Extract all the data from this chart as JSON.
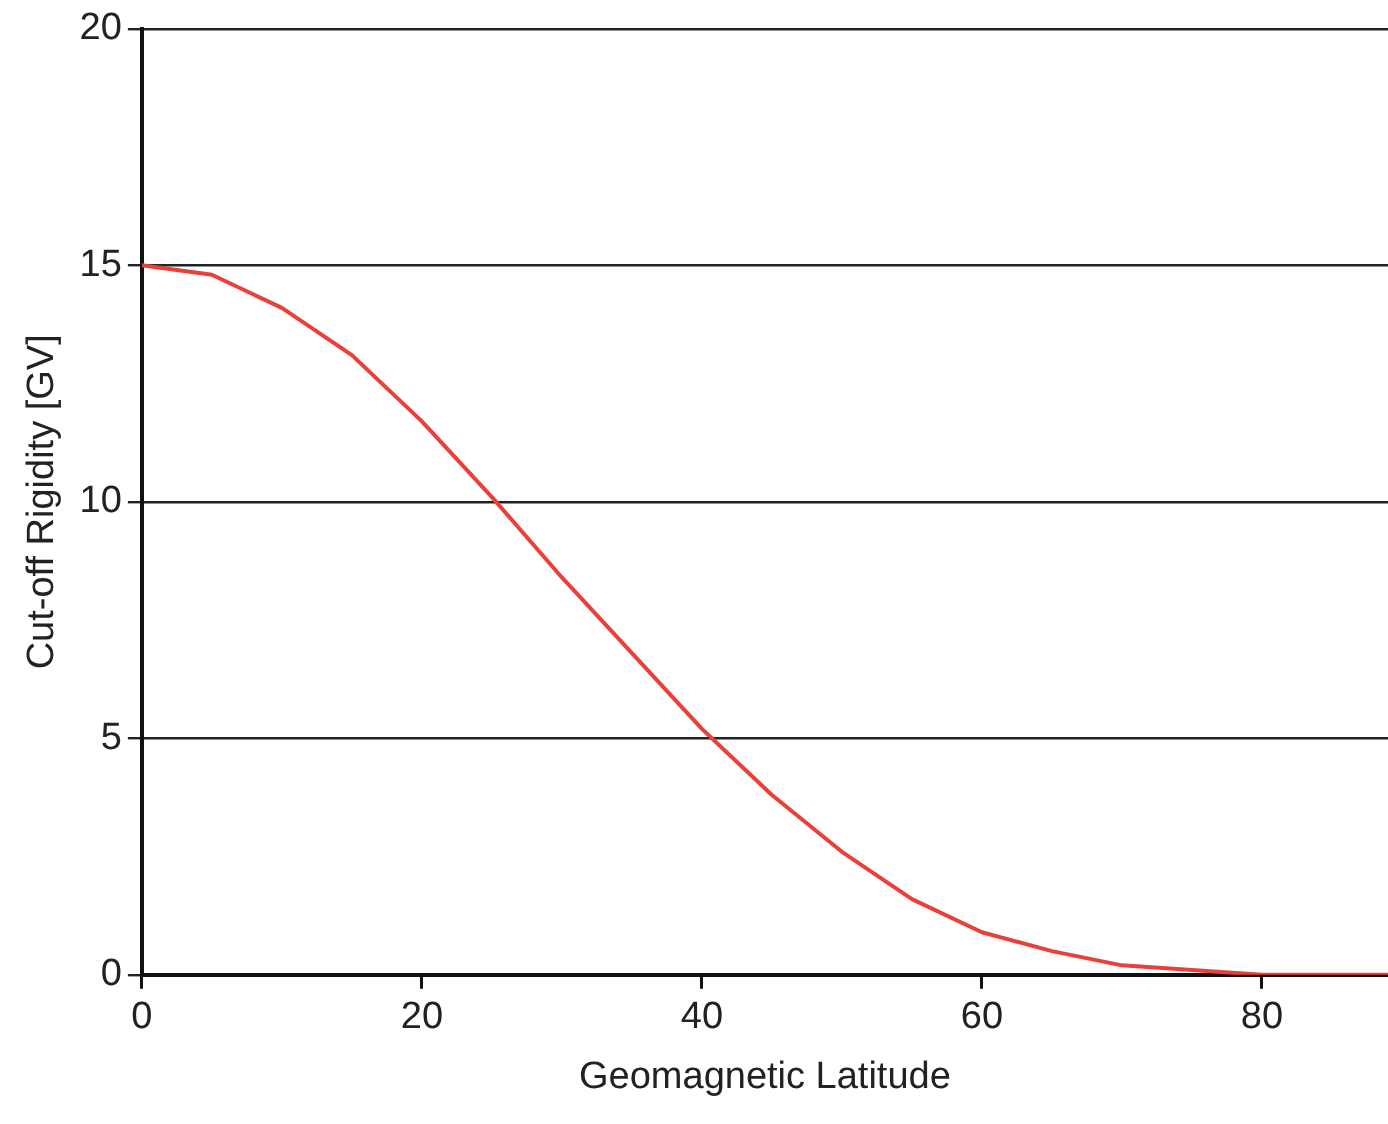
{
  "chart_data": {
    "type": "line",
    "xlabel": "Geomagnetic Latitude",
    "ylabel": "Cut-off Rigidity [GV]",
    "x": [
      0,
      5,
      10,
      15,
      20,
      25,
      30,
      35,
      40,
      45,
      50,
      55,
      60,
      65,
      70,
      75,
      80,
      85,
      89
    ],
    "series": [
      {
        "color": "#e8403a",
        "values": [
          15,
          14.8,
          14.1,
          13.1,
          11.7,
          10.1,
          8.4,
          6.8,
          5.2,
          3.8,
          2.6,
          1.6,
          0.9,
          0.5,
          0.2,
          0.1,
          0,
          0,
          0
        ]
      }
    ],
    "xlim": [
      0,
      89
    ],
    "xticks": [
      0,
      20,
      40,
      60,
      80
    ],
    "ylim": [
      0,
      20
    ],
    "yticks": [
      0,
      5,
      10,
      15,
      20
    ],
    "grid": "y",
    "legend": false,
    "marker": "none",
    "line_style": "solid"
  }
}
